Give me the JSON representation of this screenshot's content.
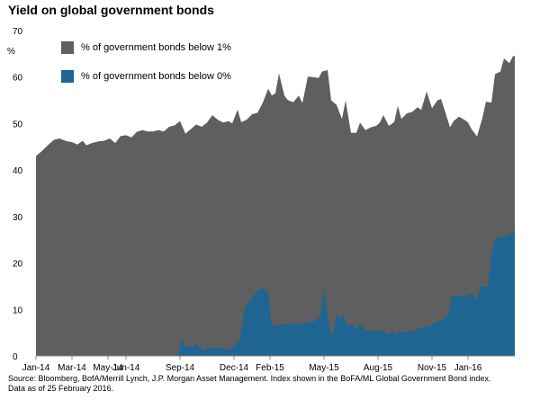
{
  "chart_data": {
    "type": "area",
    "title": "Yield on global government bonds",
    "ylabel": "%",
    "ylim": [
      0,
      70
    ],
    "y_ticks": [
      0,
      10,
      20,
      30,
      40,
      50,
      60,
      70
    ],
    "x_range": [
      "2014-01",
      "2016-02-25"
    ],
    "x_tick_labels": [
      "Jan-14",
      "Mar-14",
      "May-14",
      "Jun-14",
      "Sep-14",
      "Dec-14",
      "Feb-15",
      "May-15",
      "Aug-15",
      "Nov-15",
      "Jan-16"
    ],
    "x_tick_months": [
      0,
      2,
      4,
      5,
      8,
      11,
      13,
      16,
      19,
      22,
      24
    ],
    "grid": false,
    "legend_position": "top-left",
    "series": [
      {
        "name": "% of government bonds below 1%",
        "color": "#5f5f5f",
        "values": [
          [
            0.0,
            43
          ],
          [
            0.3,
            44
          ],
          [
            0.7,
            45.5
          ],
          [
            1.0,
            46.5
          ],
          [
            1.3,
            46.8
          ],
          [
            1.7,
            46.2
          ],
          [
            2.0,
            46
          ],
          [
            2.3,
            45.5
          ],
          [
            2.6,
            46.3
          ],
          [
            2.8,
            45.3
          ],
          [
            3.1,
            45.8
          ],
          [
            3.5,
            46.2
          ],
          [
            3.8,
            46.3
          ],
          [
            4.1,
            46.8
          ],
          [
            4.4,
            45.8
          ],
          [
            4.7,
            47.3
          ],
          [
            5.0,
            47.5
          ],
          [
            5.3,
            47
          ],
          [
            5.6,
            48.2
          ],
          [
            5.9,
            48.6
          ],
          [
            6.2,
            48.3
          ],
          [
            6.5,
            48.3
          ],
          [
            6.8,
            48.6
          ],
          [
            7.1,
            48.3
          ],
          [
            7.4,
            49.3
          ],
          [
            7.7,
            49.6
          ],
          [
            8.0,
            50.5
          ],
          [
            8.3,
            47.8
          ],
          [
            8.6,
            48.8
          ],
          [
            8.9,
            49.8
          ],
          [
            9.2,
            49.3
          ],
          [
            9.5,
            50.2
          ],
          [
            9.8,
            51.8
          ],
          [
            10.1,
            50.8
          ],
          [
            10.4,
            50.2
          ],
          [
            10.7,
            50.5
          ],
          [
            10.9,
            50
          ],
          [
            11.2,
            53
          ],
          [
            11.4,
            50.3
          ],
          [
            11.7,
            50.8
          ],
          [
            12.0,
            52
          ],
          [
            12.3,
            52.3
          ],
          [
            12.6,
            54.5
          ],
          [
            12.9,
            57.5
          ],
          [
            13.1,
            56
          ],
          [
            13.3,
            56.5
          ],
          [
            13.5,
            60.8
          ],
          [
            13.8,
            56
          ],
          [
            14.0,
            55
          ],
          [
            14.3,
            54.6
          ],
          [
            14.6,
            56
          ],
          [
            14.8,
            54.4
          ],
          [
            15.1,
            60.1
          ],
          [
            15.4,
            60
          ],
          [
            15.7,
            59.8
          ],
          [
            15.9,
            61.2
          ],
          [
            16.2,
            61.5
          ],
          [
            16.4,
            55
          ],
          [
            16.7,
            54
          ],
          [
            17.0,
            51
          ],
          [
            17.2,
            55
          ],
          [
            17.5,
            48
          ],
          [
            17.8,
            48
          ],
          [
            18.0,
            50.2
          ],
          [
            18.3,
            48.6
          ],
          [
            18.6,
            49.2
          ],
          [
            18.9,
            49.5
          ],
          [
            19.1,
            50.2
          ],
          [
            19.3,
            51.8
          ],
          [
            19.6,
            49.5
          ],
          [
            19.9,
            50.3
          ],
          [
            20.1,
            53.8
          ],
          [
            20.3,
            51
          ],
          [
            20.6,
            52.2
          ],
          [
            20.9,
            52.5
          ],
          [
            21.2,
            53.5
          ],
          [
            21.4,
            52.9
          ],
          [
            21.7,
            56.9
          ],
          [
            22.0,
            53.3
          ],
          [
            22.3,
            55
          ],
          [
            22.5,
            55.3
          ],
          [
            22.7,
            52.9
          ],
          [
            23.0,
            49.2
          ],
          [
            23.2,
            50.5
          ],
          [
            23.5,
            51.5
          ],
          [
            23.8,
            50.8
          ],
          [
            24.0,
            50.2
          ],
          [
            24.2,
            48.8
          ],
          [
            24.5,
            47.2
          ],
          [
            24.8,
            51.2
          ],
          [
            25.0,
            54.7
          ],
          [
            25.3,
            54.5
          ],
          [
            25.5,
            60.6
          ],
          [
            25.8,
            61.2
          ],
          [
            26.0,
            64
          ],
          [
            26.3,
            63
          ],
          [
            26.5,
            64.5
          ],
          [
            26.6,
            64.5
          ]
        ]
      },
      {
        "name": "% of government bonds below 0%",
        "color": "#1f6591",
        "values": [
          [
            0.0,
            0
          ],
          [
            7.7,
            0
          ],
          [
            7.9,
            0.3
          ],
          [
            8.1,
            3.8
          ],
          [
            8.3,
            2
          ],
          [
            8.5,
            2.2
          ],
          [
            8.7,
            1.8
          ],
          [
            8.9,
            2.8
          ],
          [
            9.1,
            1.9
          ],
          [
            9.3,
            1.2
          ],
          [
            9.5,
            1.5
          ],
          [
            9.8,
            1.9
          ],
          [
            10.0,
            1.8
          ],
          [
            10.3,
            1.8
          ],
          [
            10.5,
            1.6
          ],
          [
            10.8,
            1.3
          ],
          [
            11.1,
            2.9
          ],
          [
            11.3,
            2.8
          ],
          [
            11.6,
            10.5
          ],
          [
            11.8,
            11.5
          ],
          [
            12.1,
            13
          ],
          [
            12.3,
            14
          ],
          [
            12.6,
            14.5
          ],
          [
            12.9,
            13.8
          ],
          [
            13.1,
            6.5
          ],
          [
            13.4,
            6.6
          ],
          [
            13.7,
            6.9
          ],
          [
            14.0,
            6.8
          ],
          [
            14.3,
            7.1
          ],
          [
            14.6,
            6.7
          ],
          [
            14.9,
            7.3
          ],
          [
            15.2,
            7.2
          ],
          [
            15.5,
            7.5
          ],
          [
            15.8,
            8.5
          ],
          [
            16.0,
            14.5
          ],
          [
            16.3,
            6.2
          ],
          [
            16.5,
            4.2
          ],
          [
            16.7,
            9.2
          ],
          [
            16.9,
            7.8
          ],
          [
            17.1,
            8.9
          ],
          [
            17.3,
            6.5
          ],
          [
            17.6,
            6.8
          ],
          [
            17.8,
            5.8
          ],
          [
            18.0,
            6.8
          ],
          [
            18.3,
            5.6
          ],
          [
            18.6,
            5.3
          ],
          [
            18.9,
            5.5
          ],
          [
            19.2,
            5.8
          ],
          [
            19.5,
            4.4
          ],
          [
            19.8,
            5.5
          ],
          [
            20.0,
            4.8
          ],
          [
            20.3,
            5.2
          ],
          [
            20.6,
            5.2
          ],
          [
            20.9,
            5.3
          ],
          [
            21.2,
            5.8
          ],
          [
            21.5,
            6.3
          ],
          [
            21.8,
            6.2
          ],
          [
            22.0,
            6.8
          ],
          [
            22.3,
            7.5
          ],
          [
            22.6,
            7.8
          ],
          [
            22.9,
            9.2
          ],
          [
            23.1,
            12.8
          ],
          [
            23.4,
            12.9
          ],
          [
            23.7,
            13
          ],
          [
            24.0,
            13
          ],
          [
            24.2,
            13.5
          ],
          [
            24.5,
            12
          ],
          [
            24.7,
            15
          ],
          [
            24.9,
            15
          ],
          [
            25.1,
            14.8
          ],
          [
            25.3,
            22
          ],
          [
            25.5,
            25.5
          ],
          [
            25.7,
            25.6
          ],
          [
            26.0,
            25.7
          ],
          [
            26.3,
            26
          ],
          [
            26.5,
            26.8
          ],
          [
            26.6,
            26.8
          ]
        ]
      }
    ],
    "source_lines": [
      "Source: Bloomberg, BofA/Merrill Lynch, J.P. Morgan Asset Management.  Index shown in the BoFA/ML Global Government Bond index.",
      "Data as of 25 February 2016."
    ]
  }
}
